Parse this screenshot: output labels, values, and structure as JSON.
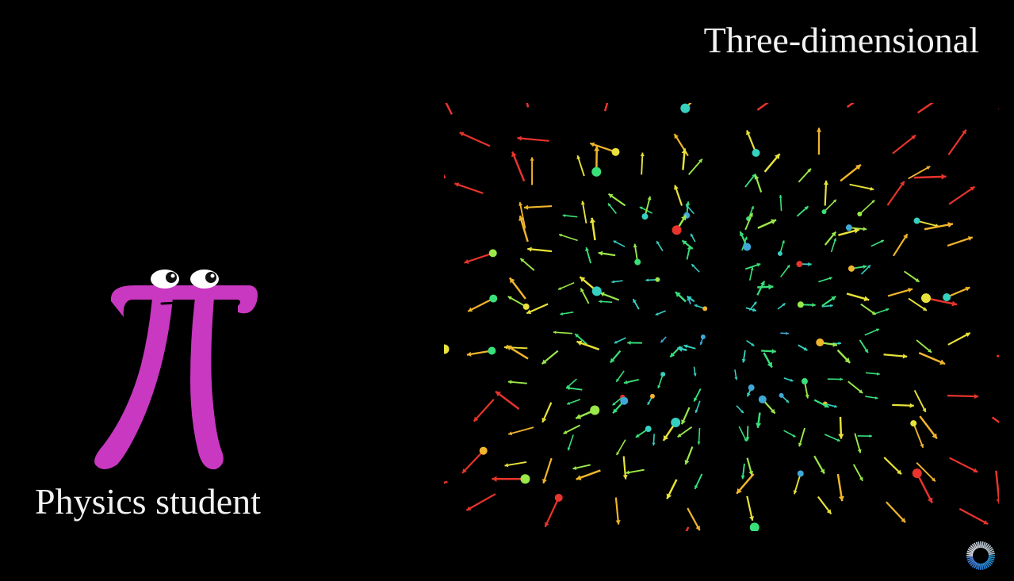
{
  "scene": {
    "title": "Three-dimensional",
    "character_label": "Physics student"
  },
  "colors": {
    "background": "#000000",
    "pi_creature": "#c938c0",
    "text": "#f2f2f2",
    "arrow_palette": [
      "#3fa8d8",
      "#35d0c0",
      "#39e07a",
      "#9be84a",
      "#e8e23a",
      "#f0b52c",
      "#e8342c"
    ]
  },
  "icons": {
    "character": "pi-creature-icon",
    "logo": "3b1b-logo-icon",
    "field": "vector-field-arrow-icon"
  }
}
